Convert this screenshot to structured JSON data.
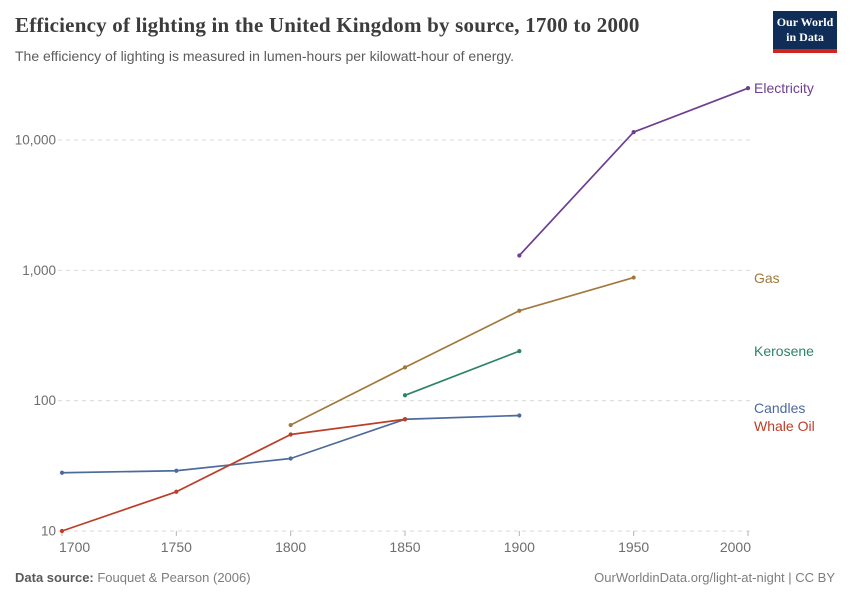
{
  "header": {
    "title": "Efficiency of lighting in the United Kingdom by source, 1700 to 2000",
    "subtitle": "The efficiency of lighting is measured in lumen-hours per kilowatt-hour of energy.",
    "logo": {
      "line1": "Our World",
      "line2": "in Data",
      "bg_color": "#0f2d56",
      "accent_color": "#cf2521"
    }
  },
  "footer": {
    "source_label": "Data source:",
    "source_value": " Fouquet & Pearson (2006)",
    "rights": "OurWorldinData.org/light-at-night | CC BY"
  },
  "chart_data": {
    "type": "line",
    "title": "Efficiency of lighting in the United Kingdom by source, 1700 to 2000",
    "xlabel": "",
    "ylabel": "lumen-hours per kilowatt-hour of energy",
    "x_scale": "linear",
    "y_scale": "log",
    "xlim": [
      1700,
      2000
    ],
    "ylim": [
      10,
      30000
    ],
    "grid": true,
    "gridline_color": "#d9d9d9",
    "axis_text_color": "#6e6e6e",
    "legend_position": "right-edge-labels",
    "xticks": [
      1700,
      1750,
      1800,
      1850,
      1900,
      1950,
      2000
    ],
    "yticks": [
      {
        "value": 10,
        "label": "10"
      },
      {
        "value": 100,
        "label": "100"
      },
      {
        "value": 1000,
        "label": "1,000"
      },
      {
        "value": 10000,
        "label": "10,000"
      }
    ],
    "series": [
      {
        "name": "Electricity",
        "color": "#6d3e91",
        "label_dy": 0,
        "points": [
          {
            "x": 1900,
            "y": 1300
          },
          {
            "x": 1950,
            "y": 11500
          },
          {
            "x": 2000,
            "y": 25000
          }
        ]
      },
      {
        "name": "Gas",
        "color": "#a2793d",
        "label_dy": 0,
        "points": [
          {
            "x": 1800,
            "y": 65
          },
          {
            "x": 1850,
            "y": 180
          },
          {
            "x": 1900,
            "y": 490
          },
          {
            "x": 1950,
            "y": 880
          }
        ]
      },
      {
        "name": "Kerosene",
        "color": "#2c8465",
        "label_dy": 0,
        "points": [
          {
            "x": 1850,
            "y": 110
          },
          {
            "x": 1900,
            "y": 240
          }
        ]
      },
      {
        "name": "Candles",
        "color": "#4c6a9c",
        "label_dy": -7,
        "points": [
          {
            "x": 1700,
            "y": 28
          },
          {
            "x": 1750,
            "y": 29
          },
          {
            "x": 1800,
            "y": 36
          },
          {
            "x": 1850,
            "y": 72
          },
          {
            "x": 1900,
            "y": 77
          }
        ]
      },
      {
        "name": "Whale Oil",
        "color": "#bc3e26",
        "label_dy": 7,
        "points": [
          {
            "x": 1700,
            "y": 10
          },
          {
            "x": 1750,
            "y": 20
          },
          {
            "x": 1800,
            "y": 55
          },
          {
            "x": 1850,
            "y": 72
          }
        ]
      }
    ]
  }
}
